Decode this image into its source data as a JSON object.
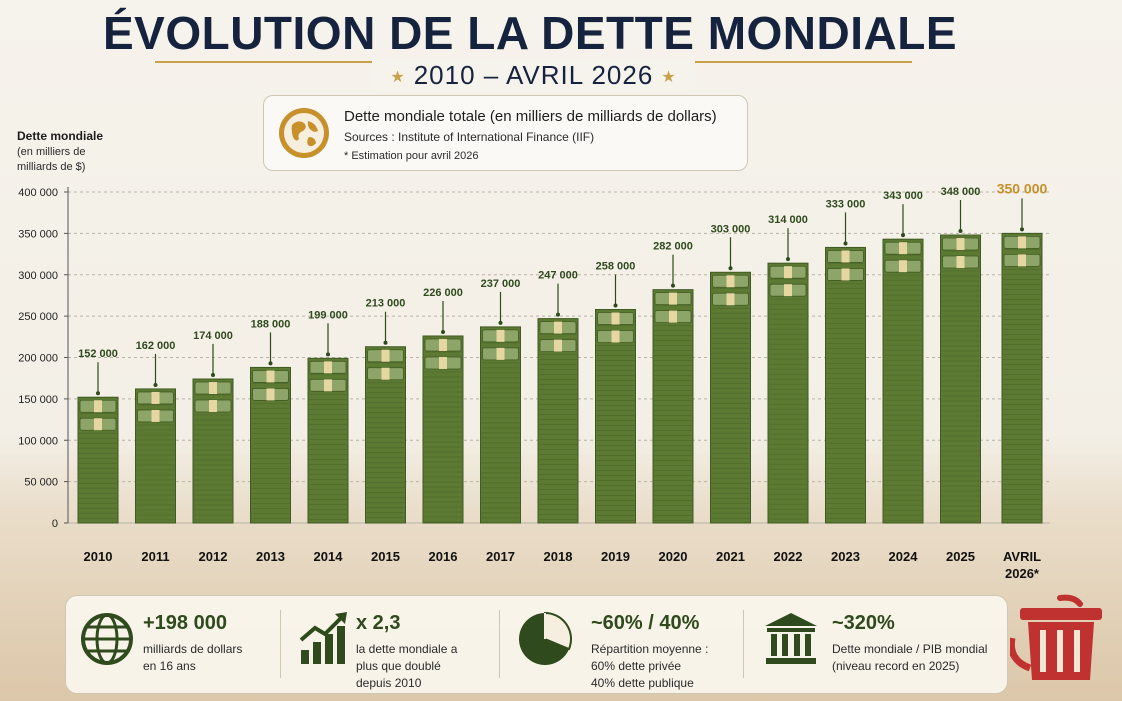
{
  "title": "ÉVOLUTION DE LA DETTE MONDIALE",
  "subtitle": "2010 – AVRIL 2026",
  "info": {
    "line1": "Dette mondiale totale (en milliers de milliards de dollars)",
    "line2": "Sources : Institute of International Finance (IIF)",
    "line3": "* Estimation pour avril 2026"
  },
  "yaxis": {
    "title": "Dette mondiale",
    "unit": "(en milliers de milliards de $)"
  },
  "colors": {
    "bars": "#5d7a33",
    "label": "#2f4a1d",
    "highlight": "#c7902a",
    "navy": "#16233f",
    "gold": "#c7a24a"
  },
  "chart_data": {
    "type": "bar",
    "title": "ÉVOLUTION DE LA DETTE MONDIALE",
    "subtitle": "2010 – AVRIL 2026",
    "ylabel": "Dette mondiale (en milliers de milliards de $)",
    "xlabel": "",
    "ylim": [
      0,
      400000
    ],
    "yticks": [
      0,
      50000,
      100000,
      150000,
      200000,
      250000,
      300000,
      350000,
      400000
    ],
    "ytick_labels": [
      "0",
      "50 000",
      "100 000",
      "150 000",
      "200 000",
      "250 000",
      "300 000",
      "350 000",
      "400 000"
    ],
    "grid": true,
    "categories": [
      "2010",
      "2011",
      "2012",
      "2013",
      "2014",
      "2015",
      "2016",
      "2017",
      "2018",
      "2019",
      "2020",
      "2021",
      "2022",
      "2023",
      "2024",
      "2025",
      "AVRIL 2026*"
    ],
    "values": [
      152000,
      162000,
      174000,
      188000,
      199000,
      213000,
      226000,
      237000,
      247000,
      258000,
      282000,
      303000,
      314000,
      333000,
      343000,
      348000,
      350000
    ],
    "labels": [
      "152 000",
      "162 000",
      "174 000",
      "188 000",
      "199 000",
      "213 000",
      "226 000",
      "237 000",
      "247 000",
      "258 000",
      "282 000",
      "303 000",
      "314 000",
      "333 000",
      "343 000",
      "348 000",
      "350 000"
    ]
  },
  "stats": [
    {
      "icon": "globe-icon",
      "value": "+198 000",
      "lines": [
        "milliards de dollars",
        "en 16 ans"
      ]
    },
    {
      "icon": "growth-chart-icon",
      "value": "x 2,3",
      "lines": [
        "la dette mondiale a",
        "plus que doublé",
        "depuis 2010"
      ]
    },
    {
      "icon": "pie-chart-icon",
      "value": "~60% / 40%",
      "lines": [
        "Répartition moyenne :",
        "60% dette privée",
        "40% dette publique"
      ]
    },
    {
      "icon": "bank-icon",
      "value": "~320%",
      "lines": [
        "Dette mondiale / PIB mondial",
        "(niveau record en 2025)"
      ]
    }
  ]
}
